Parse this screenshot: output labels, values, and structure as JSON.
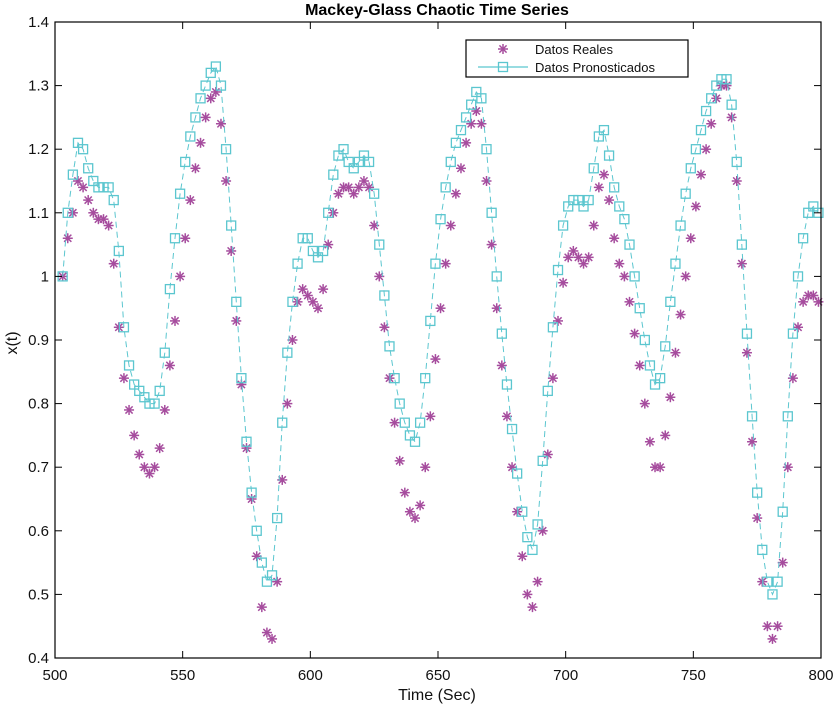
{
  "chart_data": {
    "type": "line",
    "title": "Mackey-Glass Chaotic Time Series",
    "xlabel": "Time (Sec)",
    "ylabel": "x(t)",
    "xlim": [
      500,
      800
    ],
    "ylim": [
      0.4,
      1.4
    ],
    "xticks": [
      500,
      550,
      600,
      650,
      700,
      750,
      800
    ],
    "yticks": [
      0.4,
      0.5,
      0.6,
      0.7,
      0.8,
      0.9,
      1.0,
      1.1,
      1.2,
      1.3,
      1.4
    ],
    "xtick_labels": [
      "500",
      "550",
      "600",
      "650",
      "700",
      "750",
      "800"
    ],
    "ytick_labels": [
      "0.4",
      "0.5",
      "0.6",
      "0.7",
      "0.8",
      "0.9",
      "1",
      "1.1",
      "1.2",
      "1.3",
      "1.4"
    ],
    "grid": false,
    "legend_position": "top-right",
    "series": [
      {
        "name": "Datos Reales",
        "marker": "asterisk",
        "color": "#a64d9e",
        "points": [
          [
            503,
            1.0
          ],
          [
            505,
            1.06
          ],
          [
            507,
            1.1
          ],
          [
            509,
            1.15
          ],
          [
            511,
            1.14
          ],
          [
            513,
            1.12
          ],
          [
            515,
            1.1
          ],
          [
            517,
            1.09
          ],
          [
            519,
            1.09
          ],
          [
            521,
            1.08
          ],
          [
            523,
            1.02
          ],
          [
            525,
            0.92
          ],
          [
            527,
            0.84
          ],
          [
            529,
            0.79
          ],
          [
            531,
            0.75
          ],
          [
            533,
            0.72
          ],
          [
            535,
            0.7
          ],
          [
            537,
            0.69
          ],
          [
            539,
            0.7
          ],
          [
            541,
            0.73
          ],
          [
            543,
            0.79
          ],
          [
            545,
            0.86
          ],
          [
            547,
            0.93
          ],
          [
            549,
            1.0
          ],
          [
            551,
            1.06
          ],
          [
            553,
            1.12
          ],
          [
            555,
            1.17
          ],
          [
            557,
            1.21
          ],
          [
            559,
            1.25
          ],
          [
            561,
            1.28
          ],
          [
            563,
            1.29
          ],
          [
            565,
            1.24
          ],
          [
            567,
            1.15
          ],
          [
            569,
            1.04
          ],
          [
            571,
            0.93
          ],
          [
            573,
            0.83
          ],
          [
            575,
            0.73
          ],
          [
            577,
            0.65
          ],
          [
            579,
            0.56
          ],
          [
            581,
            0.48
          ],
          [
            583,
            0.44
          ],
          [
            585,
            0.43
          ],
          [
            587,
            0.52
          ],
          [
            589,
            0.68
          ],
          [
            591,
            0.8
          ],
          [
            593,
            0.9
          ],
          [
            595,
            0.96
          ],
          [
            597,
            0.98
          ],
          [
            599,
            0.97
          ],
          [
            601,
            0.96
          ],
          [
            603,
            0.95
          ],
          [
            605,
            0.98
          ],
          [
            607,
            1.05
          ],
          [
            609,
            1.1
          ],
          [
            611,
            1.13
          ],
          [
            613,
            1.14
          ],
          [
            615,
            1.14
          ],
          [
            617,
            1.13
          ],
          [
            619,
            1.14
          ],
          [
            621,
            1.15
          ],
          [
            623,
            1.14
          ],
          [
            625,
            1.08
          ],
          [
            627,
            1.0
          ],
          [
            629,
            0.92
          ],
          [
            631,
            0.84
          ],
          [
            633,
            0.77
          ],
          [
            635,
            0.71
          ],
          [
            637,
            0.66
          ],
          [
            639,
            0.63
          ],
          [
            641,
            0.62
          ],
          [
            643,
            0.64
          ],
          [
            645,
            0.7
          ],
          [
            647,
            0.78
          ],
          [
            649,
            0.87
          ],
          [
            651,
            0.95
          ],
          [
            653,
            1.02
          ],
          [
            655,
            1.08
          ],
          [
            657,
            1.13
          ],
          [
            659,
            1.17
          ],
          [
            661,
            1.21
          ],
          [
            663,
            1.24
          ],
          [
            665,
            1.26
          ],
          [
            667,
            1.24
          ],
          [
            669,
            1.15
          ],
          [
            671,
            1.05
          ],
          [
            673,
            0.95
          ],
          [
            675,
            0.86
          ],
          [
            677,
            0.78
          ],
          [
            679,
            0.7
          ],
          [
            681,
            0.63
          ],
          [
            683,
            0.56
          ],
          [
            685,
            0.5
          ],
          [
            687,
            0.48
          ],
          [
            689,
            0.52
          ],
          [
            691,
            0.6
          ],
          [
            693,
            0.72
          ],
          [
            695,
            0.84
          ],
          [
            697,
            0.93
          ],
          [
            699,
            0.99
          ],
          [
            701,
            1.03
          ],
          [
            703,
            1.04
          ],
          [
            705,
            1.03
          ],
          [
            707,
            1.02
          ],
          [
            709,
            1.03
          ],
          [
            711,
            1.08
          ],
          [
            713,
            1.14
          ],
          [
            715,
            1.16
          ],
          [
            717,
            1.12
          ],
          [
            719,
            1.06
          ],
          [
            721,
            1.02
          ],
          [
            723,
            1.0
          ],
          [
            725,
            0.96
          ],
          [
            727,
            0.91
          ],
          [
            729,
            0.86
          ],
          [
            731,
            0.8
          ],
          [
            733,
            0.74
          ],
          [
            735,
            0.7
          ],
          [
            737,
            0.7
          ],
          [
            739,
            0.75
          ],
          [
            741,
            0.81
          ],
          [
            743,
            0.88
          ],
          [
            745,
            0.94
          ],
          [
            747,
            1.0
          ],
          [
            749,
            1.06
          ],
          [
            751,
            1.11
          ],
          [
            753,
            1.16
          ],
          [
            755,
            1.2
          ],
          [
            757,
            1.24
          ],
          [
            759,
            1.28
          ],
          [
            761,
            1.3
          ],
          [
            763,
            1.3
          ],
          [
            765,
            1.25
          ],
          [
            767,
            1.15
          ],
          [
            769,
            1.02
          ],
          [
            771,
            0.88
          ],
          [
            773,
            0.74
          ],
          [
            775,
            0.62
          ],
          [
            777,
            0.52
          ],
          [
            779,
            0.45
          ],
          [
            781,
            0.43
          ],
          [
            783,
            0.45
          ],
          [
            785,
            0.55
          ],
          [
            787,
            0.7
          ],
          [
            789,
            0.84
          ],
          [
            791,
            0.92
          ],
          [
            793,
            0.96
          ],
          [
            795,
            0.97
          ],
          [
            797,
            0.97
          ],
          [
            799,
            0.96
          ]
        ]
      },
      {
        "name": "Datos Pronosticados",
        "marker": "square",
        "color": "#5bc6cf",
        "points": [
          [
            503,
            1.0
          ],
          [
            505,
            1.1
          ],
          [
            507,
            1.16
          ],
          [
            509,
            1.21
          ],
          [
            511,
            1.2
          ],
          [
            513,
            1.17
          ],
          [
            515,
            1.15
          ],
          [
            517,
            1.14
          ],
          [
            519,
            1.14
          ],
          [
            521,
            1.14
          ],
          [
            523,
            1.12
          ],
          [
            525,
            1.04
          ],
          [
            527,
            0.92
          ],
          [
            529,
            0.86
          ],
          [
            531,
            0.83
          ],
          [
            533,
            0.82
          ],
          [
            535,
            0.81
          ],
          [
            537,
            0.8
          ],
          [
            539,
            0.8
          ],
          [
            541,
            0.82
          ],
          [
            543,
            0.88
          ],
          [
            545,
            0.98
          ],
          [
            547,
            1.06
          ],
          [
            549,
            1.13
          ],
          [
            551,
            1.18
          ],
          [
            553,
            1.22
          ],
          [
            555,
            1.25
          ],
          [
            557,
            1.28
          ],
          [
            559,
            1.3
          ],
          [
            561,
            1.32
          ],
          [
            563,
            1.33
          ],
          [
            565,
            1.3
          ],
          [
            567,
            1.2
          ],
          [
            569,
            1.08
          ],
          [
            571,
            0.96
          ],
          [
            573,
            0.84
          ],
          [
            575,
            0.74
          ],
          [
            577,
            0.66
          ],
          [
            579,
            0.6
          ],
          [
            581,
            0.55
          ],
          [
            583,
            0.52
          ],
          [
            585,
            0.53
          ],
          [
            587,
            0.62
          ],
          [
            589,
            0.77
          ],
          [
            591,
            0.88
          ],
          [
            593,
            0.96
          ],
          [
            595,
            1.02
          ],
          [
            597,
            1.06
          ],
          [
            599,
            1.06
          ],
          [
            601,
            1.04
          ],
          [
            603,
            1.03
          ],
          [
            605,
            1.04
          ],
          [
            607,
            1.1
          ],
          [
            609,
            1.16
          ],
          [
            611,
            1.19
          ],
          [
            613,
            1.2
          ],
          [
            615,
            1.18
          ],
          [
            617,
            1.17
          ],
          [
            619,
            1.18
          ],
          [
            621,
            1.19
          ],
          [
            623,
            1.18
          ],
          [
            625,
            1.13
          ],
          [
            627,
            1.05
          ],
          [
            629,
            0.97
          ],
          [
            631,
            0.89
          ],
          [
            633,
            0.84
          ],
          [
            635,
            0.8
          ],
          [
            637,
            0.77
          ],
          [
            639,
            0.75
          ],
          [
            641,
            0.74
          ],
          [
            643,
            0.77
          ],
          [
            645,
            0.84
          ],
          [
            647,
            0.93
          ],
          [
            649,
            1.02
          ],
          [
            651,
            1.09
          ],
          [
            653,
            1.14
          ],
          [
            655,
            1.18
          ],
          [
            657,
            1.21
          ],
          [
            659,
            1.23
          ],
          [
            661,
            1.25
          ],
          [
            663,
            1.27
          ],
          [
            665,
            1.29
          ],
          [
            667,
            1.28
          ],
          [
            669,
            1.2
          ],
          [
            671,
            1.1
          ],
          [
            673,
            1.0
          ],
          [
            675,
            0.91
          ],
          [
            677,
            0.83
          ],
          [
            679,
            0.76
          ],
          [
            681,
            0.69
          ],
          [
            683,
            0.63
          ],
          [
            685,
            0.59
          ],
          [
            687,
            0.57
          ],
          [
            689,
            0.61
          ],
          [
            691,
            0.71
          ],
          [
            693,
            0.82
          ],
          [
            695,
            0.92
          ],
          [
            697,
            1.01
          ],
          [
            699,
            1.08
          ],
          [
            701,
            1.11
          ],
          [
            703,
            1.12
          ],
          [
            705,
            1.12
          ],
          [
            707,
            1.11
          ],
          [
            709,
            1.12
          ],
          [
            711,
            1.17
          ],
          [
            713,
            1.22
          ],
          [
            715,
            1.23
          ],
          [
            717,
            1.19
          ],
          [
            719,
            1.14
          ],
          [
            721,
            1.11
          ],
          [
            723,
            1.09
          ],
          [
            725,
            1.05
          ],
          [
            727,
            1.0
          ],
          [
            729,
            0.95
          ],
          [
            731,
            0.9
          ],
          [
            733,
            0.86
          ],
          [
            735,
            0.83
          ],
          [
            737,
            0.84
          ],
          [
            739,
            0.89
          ],
          [
            741,
            0.96
          ],
          [
            743,
            1.02
          ],
          [
            745,
            1.08
          ],
          [
            747,
            1.13
          ],
          [
            749,
            1.17
          ],
          [
            751,
            1.2
          ],
          [
            753,
            1.23
          ],
          [
            755,
            1.26
          ],
          [
            757,
            1.28
          ],
          [
            759,
            1.3
          ],
          [
            761,
            1.31
          ],
          [
            763,
            1.31
          ],
          [
            765,
            1.27
          ],
          [
            767,
            1.18
          ],
          [
            769,
            1.05
          ],
          [
            771,
            0.91
          ],
          [
            773,
            0.78
          ],
          [
            775,
            0.66
          ],
          [
            777,
            0.57
          ],
          [
            779,
            0.52
          ],
          [
            781,
            0.5
          ],
          [
            783,
            0.52
          ],
          [
            785,
            0.63
          ],
          [
            787,
            0.78
          ],
          [
            789,
            0.91
          ],
          [
            791,
            1.0
          ],
          [
            793,
            1.06
          ],
          [
            795,
            1.1
          ],
          [
            797,
            1.11
          ],
          [
            799,
            1.1
          ]
        ]
      }
    ]
  }
}
